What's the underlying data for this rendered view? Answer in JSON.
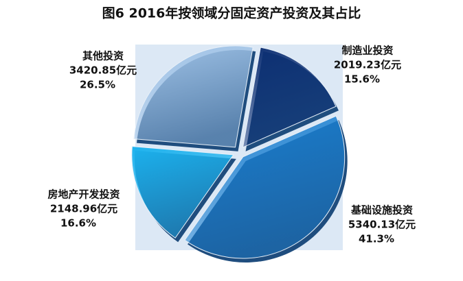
{
  "chart_data": {
    "type": "pie",
    "title": "图6  2016年按领域分固定资产投资及其占比",
    "categories": [
      "制造业投资",
      "基础设施投资",
      "房地产开发投资",
      "其他投资"
    ],
    "values": [
      2019.23,
      5340.13,
      2148.96,
      3420.85
    ],
    "value_labels": [
      "2019.23亿元",
      "5340.13亿元",
      "2148.96亿元",
      "3420.85亿元"
    ],
    "shares": [
      15.6,
      41.3,
      16.6,
      26.5
    ],
    "share_labels": [
      "15.6%",
      "41.3%",
      "16.6%",
      "26.5%"
    ],
    "colors": [
      "#0d2f73",
      "#1a7fd0",
      "#1cb2ee",
      "#9fc2e6"
    ]
  }
}
